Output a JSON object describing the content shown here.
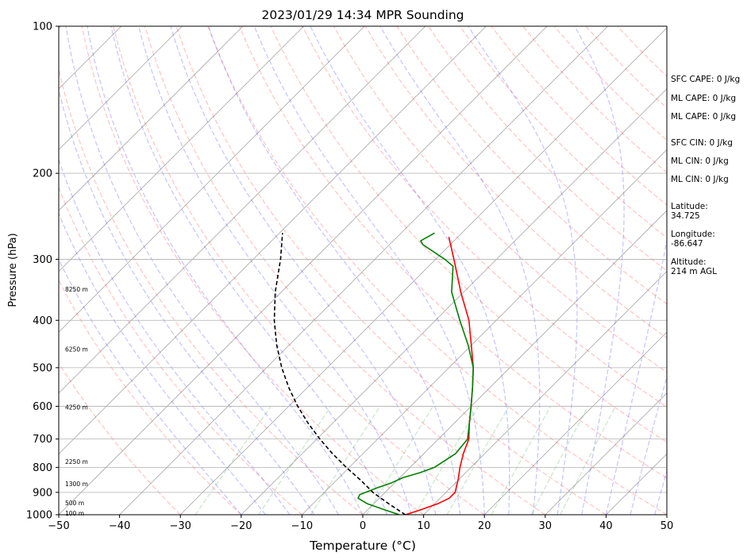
{
  "chart_data": {
    "type": "line",
    "title": "2023/01/29 14:34 MPR Sounding",
    "xlabel": "Temperature (°C)",
    "ylabel": "Pressure (hPa)",
    "xlim": [
      -50,
      50
    ],
    "ylim": [
      1000,
      100
    ],
    "y_scale": "log",
    "x_ticks": [
      -50,
      -40,
      -30,
      -20,
      -10,
      0,
      10,
      20,
      30,
      40,
      50
    ],
    "x_tick_labels": [
      "−50",
      "−40",
      "−30",
      "−20",
      "−10",
      "0",
      "10",
      "20",
      "30",
      "40",
      "50"
    ],
    "y_ticks": [
      1000,
      900,
      800,
      700,
      600,
      500,
      400,
      300,
      200,
      100
    ],
    "y_tick_labels": [
      "1000",
      "900",
      "800",
      "700",
      "600",
      "500",
      "400",
      "300",
      "200",
      "100"
    ],
    "grid": true,
    "height_labels": [
      {
        "p": 994,
        "text": "100 m"
      },
      {
        "p": 947,
        "text": "500 m"
      },
      {
        "p": 866,
        "text": "1300 m"
      },
      {
        "p": 780,
        "text": "2250 m"
      },
      {
        "p": 603,
        "text": "4250 m"
      },
      {
        "p": 459,
        "text": "6250 m"
      },
      {
        "p": 346,
        "text": "8250 m"
      }
    ],
    "series": [
      {
        "color": "#ff0000",
        "points": [
          {
            "p": 1000,
            "t": 7.0
          },
          {
            "p": 980,
            "t": 8.5
          },
          {
            "p": 950,
            "t": 10.5
          },
          {
            "p": 925,
            "t": 11.5
          },
          {
            "p": 900,
            "t": 11.5
          },
          {
            "p": 850,
            "t": 10.0
          },
          {
            "p": 800,
            "t": 8.2
          },
          {
            "p": 750,
            "t": 6.5
          },
          {
            "p": 700,
            "t": 5.0
          },
          {
            "p": 650,
            "t": 2.5
          },
          {
            "p": 600,
            "t": 0.0
          },
          {
            "p": 550,
            "t": -2.8
          },
          {
            "p": 500,
            "t": -6.0
          },
          {
            "p": 450,
            "t": -10.0
          },
          {
            "p": 400,
            "t": -14.5
          },
          {
            "p": 350,
            "t": -20.5
          },
          {
            "p": 300,
            "t": -27.0
          },
          {
            "p": 270,
            "t": -31.5
          }
        ]
      },
      {
        "color": "#008000",
        "points": [
          {
            "p": 1000,
            "t": 6.0
          },
          {
            "p": 975,
            "t": 2.5
          },
          {
            "p": 950,
            "t": -1.0
          },
          {
            "p": 925,
            "t": -3.5
          },
          {
            "p": 910,
            "t": -3.8
          },
          {
            "p": 880,
            "t": -2.0
          },
          {
            "p": 860,
            "t": -0.5
          },
          {
            "p": 840,
            "t": 0.5
          },
          {
            "p": 820,
            "t": 2.5
          },
          {
            "p": 800,
            "t": 4.0
          },
          {
            "p": 750,
            "t": 5.2
          },
          {
            "p": 700,
            "t": 4.8
          },
          {
            "p": 650,
            "t": 2.5
          },
          {
            "p": 600,
            "t": 0.0
          },
          {
            "p": 550,
            "t": -2.8
          },
          {
            "p": 500,
            "t": -6.0
          },
          {
            "p": 450,
            "t": -10.5
          },
          {
            "p": 400,
            "t": -16.0
          },
          {
            "p": 350,
            "t": -22.0
          },
          {
            "p": 310,
            "t": -26.0
          },
          {
            "p": 300,
            "t": -28.5
          },
          {
            "p": 280,
            "t": -34.5
          },
          {
            "p": 275,
            "t": -35.5
          },
          {
            "p": 265,
            "t": -34.5
          }
        ]
      },
      {
        "color": "#000000",
        "dashed": true,
        "points": [
          {
            "p": 1000,
            "t": 7.0
          },
          {
            "p": 950,
            "t": 2.5
          },
          {
            "p": 900,
            "t": -2.0
          },
          {
            "p": 850,
            "t": -6.0
          },
          {
            "p": 800,
            "t": -10.5
          },
          {
            "p": 750,
            "t": -15.0
          },
          {
            "p": 700,
            "t": -19.5
          },
          {
            "p": 650,
            "t": -24.0
          },
          {
            "p": 600,
            "t": -28.5
          },
          {
            "p": 550,
            "t": -33.0
          },
          {
            "p": 500,
            "t": -37.5
          },
          {
            "p": 450,
            "t": -42.0
          },
          {
            "p": 400,
            "t": -46.5
          },
          {
            "p": 350,
            "t": -51.0
          },
          {
            "p": 300,
            "t": -55.5
          },
          {
            "p": 265,
            "t": -59.5
          }
        ]
      }
    ],
    "background_lines": {
      "dry_adiabat_color": "#ff0000",
      "moist_adiabat_color": "#0000ff",
      "mixing_ratio_color": "#008000",
      "isotherm_color": "#808080"
    }
  },
  "annotations": [
    {
      "text": "SFC CAPE: 0 J/kg"
    },
    {
      "text": "ML CAPE: 0 J/kg"
    },
    {
      "text": "ML CAPE: 0 J/kg"
    },
    {
      "text": "SFC CIN: 0 J/kg"
    },
    {
      "text": "ML CIN: 0 J/kg"
    },
    {
      "text": "ML CIN: 0 J/kg"
    },
    {
      "label": "Latitude:",
      "value": "34.725"
    },
    {
      "label": "Longitude:",
      "value": "-86.647"
    },
    {
      "label": "Altitude:",
      "value": "214 m AGL"
    }
  ]
}
